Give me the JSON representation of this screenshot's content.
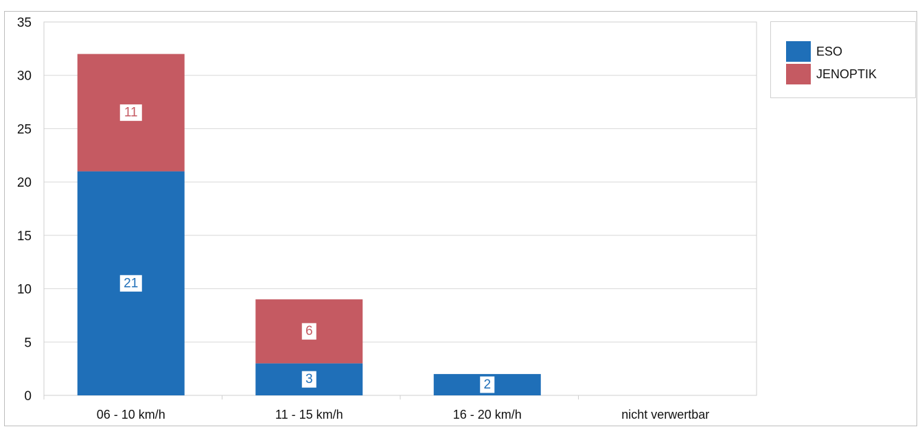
{
  "chart_data": {
    "type": "bar",
    "stacked": true,
    "categories": [
      "06 - 10 km/h",
      "11 - 15 km/h",
      "16 - 20 km/h",
      "nicht verwertbar"
    ],
    "series": [
      {
        "name": "ESO",
        "values": [
          21,
          3,
          2,
          0
        ],
        "color": "#1f6fb8"
      },
      {
        "name": "JENOPTIK",
        "values": [
          11,
          6,
          0,
          0
        ],
        "color": "#c55a62"
      }
    ],
    "data_labels": [
      {
        "series": 0,
        "category": 0,
        "text": "21"
      },
      {
        "series": 1,
        "category": 0,
        "text": "11"
      },
      {
        "series": 0,
        "category": 1,
        "text": "3"
      },
      {
        "series": 1,
        "category": 1,
        "text": "6"
      },
      {
        "series": 0,
        "category": 2,
        "text": "2"
      }
    ],
    "ylim": [
      0,
      35
    ],
    "yticks": [
      0,
      5,
      10,
      15,
      20,
      25,
      30,
      35
    ],
    "ytick_labels": [
      "0",
      "5",
      "10",
      "15",
      "20",
      "25",
      "30",
      "35"
    ],
    "grid": true,
    "legend_position": "top-right",
    "title": "",
    "xlabel": "",
    "ylabel": ""
  }
}
